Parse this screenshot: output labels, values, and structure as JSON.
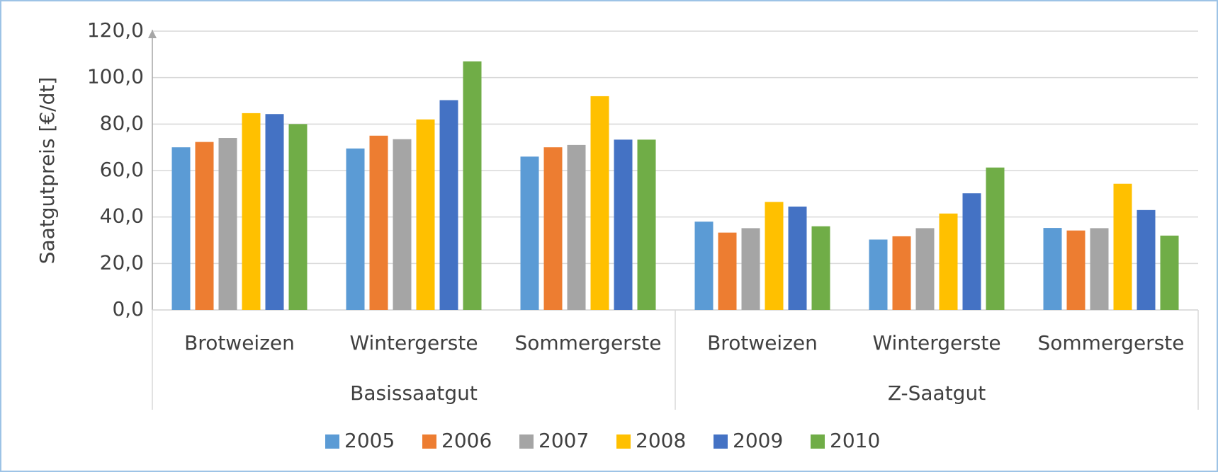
{
  "chart_data": {
    "type": "bar",
    "y_label": "Saatgutpreis [€/dt]",
    "categories": [
      "Brotweizen",
      "Wintergerste",
      "Sommergerste",
      "Brotweizen",
      "Wintergerste",
      "Sommergerste"
    ],
    "groups": [
      {
        "label": "Basissaatgut",
        "size": 3
      },
      {
        "label": "Z-Saatgut",
        "size": 3
      }
    ],
    "series": [
      {
        "name": "2005",
        "color": "#5b9bd5",
        "values": [
          70,
          69.5,
          66,
          38,
          30.3,
          35.3
        ]
      },
      {
        "name": "2006",
        "color": "#ed7d31",
        "values": [
          72.3,
          75,
          70,
          33.3,
          31.7,
          34.2
        ]
      },
      {
        "name": "2007",
        "color": "#a5a5a5",
        "values": [
          74,
          73.5,
          71,
          35.2,
          35.2,
          35.2
        ]
      },
      {
        "name": "2008",
        "color": "#ffc000",
        "values": [
          84.7,
          82,
          92,
          46.5,
          41.5,
          54.3
        ]
      },
      {
        "name": "2009",
        "color": "#4472c4",
        "values": [
          84.3,
          90.3,
          73.3,
          44.5,
          50.2,
          43
        ]
      },
      {
        "name": "2010",
        "color": "#70ad47",
        "values": [
          80,
          107,
          73.3,
          36,
          61.3,
          32
        ]
      }
    ],
    "ylim": [
      0,
      120
    ],
    "yticks": [
      {
        "value": 0,
        "label": "0,0"
      },
      {
        "value": 20,
        "label": "20,0"
      },
      {
        "value": 40,
        "label": "40,0"
      },
      {
        "value": 60,
        "label": "60,0"
      },
      {
        "value": 80,
        "label": "80,0"
      },
      {
        "value": 100,
        "label": "100,0"
      },
      {
        "value": 120,
        "label": "120,0"
      }
    ],
    "grid": true,
    "legend": "bottom"
  }
}
